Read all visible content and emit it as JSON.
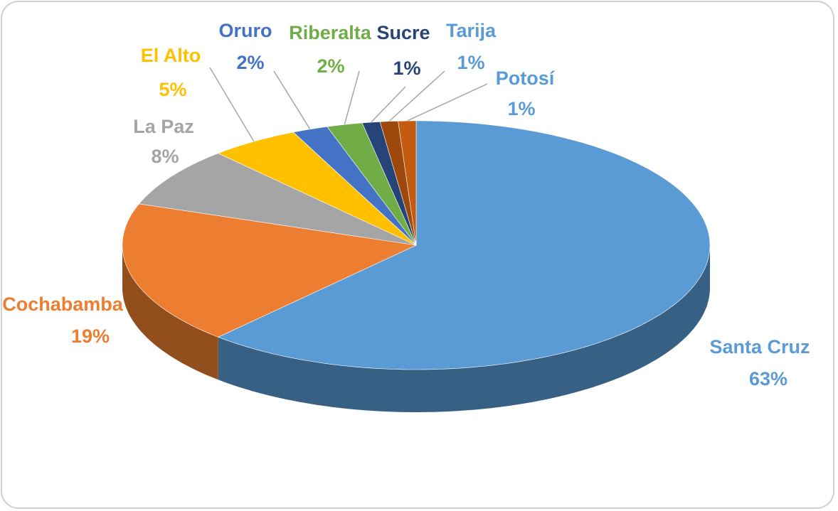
{
  "chart_data": {
    "type": "pie3d",
    "categories": [
      "Santa Cruz",
      "Cochabamba",
      "La Paz",
      "El Alto",
      "Oruro",
      "Riberalta",
      "Sucre",
      "Tarija",
      "Potosí"
    ],
    "values": [
      63,
      19,
      8,
      5,
      2,
      2,
      1,
      1,
      1
    ],
    "value_labels": [
      "63%",
      "19%",
      "8%",
      "5%",
      "2%",
      "2%",
      "1%",
      "1%",
      "1%"
    ],
    "colors": [
      "#5b9bd5",
      "#ed7d31",
      "#a5a5a5",
      "#ffc000",
      "#4472c4",
      "#70ad47",
      "#264478",
      "#9e480e",
      "#c55a11"
    ],
    "label_colors": [
      "#5b9bd5",
      "#ed7d31",
      "#a5a5a5",
      "#ffc000",
      "#4472c4",
      "#70ad47",
      "#264478",
      "#5b9bd5",
      "#5b9bd5"
    ]
  }
}
